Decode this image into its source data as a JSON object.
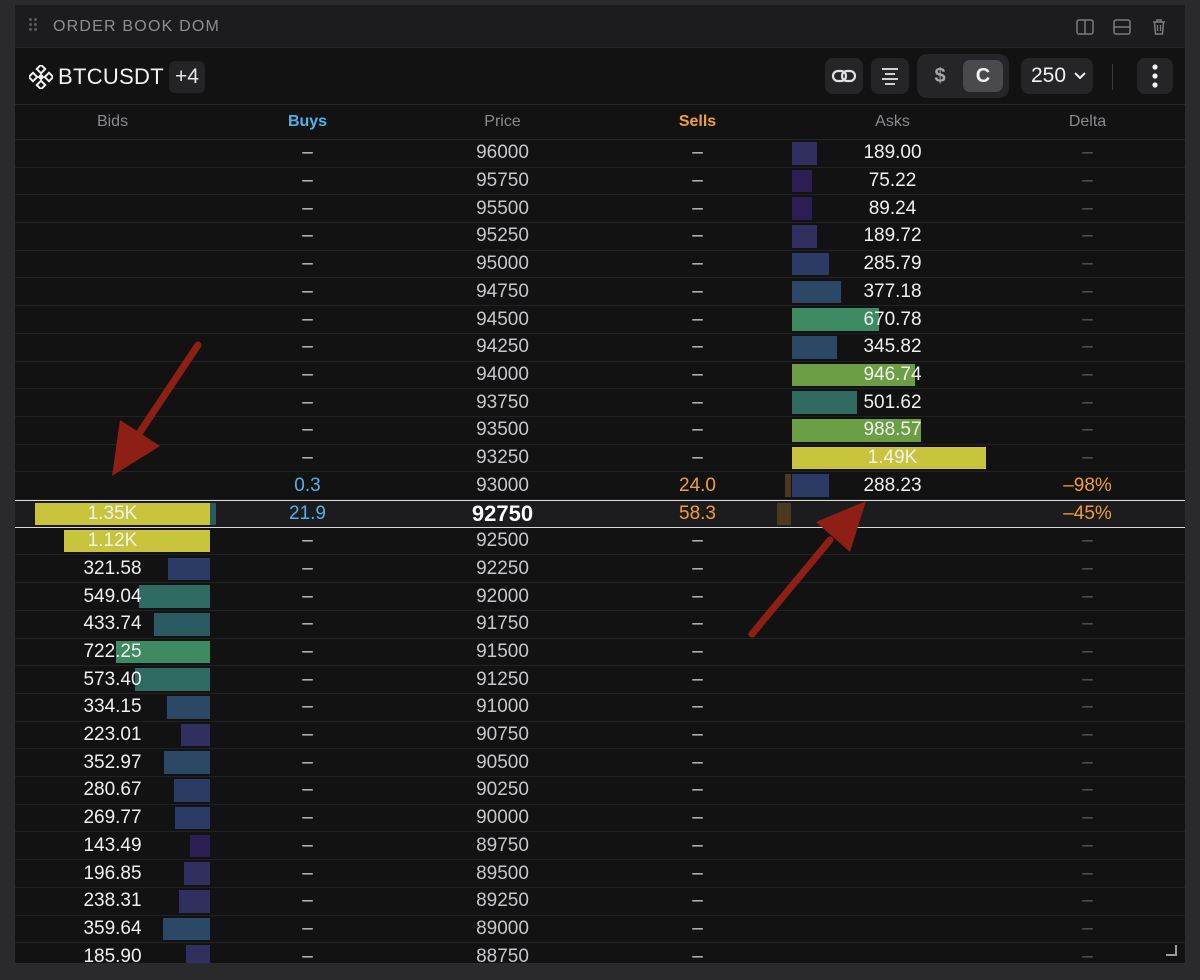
{
  "panel": {
    "title": "ORDER BOOK DOM",
    "icons": [
      "drag-handle-icon",
      "split-vertical-icon",
      "split-horizontal-icon",
      "trash-icon"
    ]
  },
  "toolbar": {
    "symbol": "BTCUSDT",
    "more_symbols": "+4",
    "currency_dollar": "$",
    "currency_c": "C",
    "size": "250",
    "icons": [
      "binance-logo-icon",
      "link-icon",
      "align-icon",
      "chevron-down-icon",
      "more-vertical-icon"
    ]
  },
  "columns": {
    "bids": "Bids",
    "buys": "Buys",
    "price": "Price",
    "sells": "Sells",
    "asks": "Asks",
    "delta": "Delta"
  },
  "colors": {
    "buys": "#4fb3e6",
    "sells": "#f0a030",
    "background": "#121212"
  },
  "rows": [
    {
      "price": "96000",
      "buys": "–",
      "sells": "–",
      "ask": "189.00",
      "ask_value": 189.0,
      "delta": "–"
    },
    {
      "price": "95750",
      "buys": "–",
      "sells": "–",
      "ask": "75.22",
      "ask_value": 75.22,
      "delta": "–"
    },
    {
      "price": "95500",
      "buys": "–",
      "sells": "–",
      "ask": "89.24",
      "ask_value": 89.24,
      "delta": "–"
    },
    {
      "price": "95250",
      "buys": "–",
      "sells": "–",
      "ask": "189.72",
      "ask_value": 189.72,
      "delta": "–"
    },
    {
      "price": "95000",
      "buys": "–",
      "sells": "–",
      "ask": "285.79",
      "ask_value": 285.79,
      "delta": "–"
    },
    {
      "price": "94750",
      "buys": "–",
      "sells": "–",
      "ask": "377.18",
      "ask_value": 377.18,
      "delta": "–"
    },
    {
      "price": "94500",
      "buys": "–",
      "sells": "–",
      "ask": "670.78",
      "ask_value": 670.78,
      "delta": "–"
    },
    {
      "price": "94250",
      "buys": "–",
      "sells": "–",
      "ask": "345.82",
      "ask_value": 345.82,
      "delta": "–"
    },
    {
      "price": "94000",
      "buys": "–",
      "sells": "–",
      "ask": "946.74",
      "ask_value": 946.74,
      "delta": "–"
    },
    {
      "price": "93750",
      "buys": "–",
      "sells": "–",
      "ask": "501.62",
      "ask_value": 501.62,
      "delta": "–"
    },
    {
      "price": "93500",
      "buys": "–",
      "sells": "–",
      "ask": "988.57",
      "ask_value": 988.57,
      "delta": "–"
    },
    {
      "price": "93250",
      "buys": "–",
      "sells": "–",
      "ask": "1.49K",
      "ask_value": 1490,
      "delta": "–"
    },
    {
      "price": "93000",
      "buys": "0.3",
      "sells": "24.0",
      "ask": "288.23",
      "ask_value": 288.23,
      "delta": "–98%"
    },
    {
      "price": "92750",
      "buys": "21.9",
      "sells": "58.3",
      "bid": "1.35K",
      "bid_value": 1350,
      "delta": "–45%",
      "current": true
    },
    {
      "price": "92500",
      "buys": "–",
      "sells": "–",
      "bid": "1.12K",
      "bid_value": 1120,
      "delta": "–"
    },
    {
      "price": "92250",
      "buys": "–",
      "sells": "–",
      "bid": "321.58",
      "bid_value": 321.58,
      "delta": "–"
    },
    {
      "price": "92000",
      "buys": "–",
      "sells": "–",
      "bid": "549.04",
      "bid_value": 549.04,
      "delta": "–"
    },
    {
      "price": "91750",
      "buys": "–",
      "sells": "–",
      "bid": "433.74",
      "bid_value": 433.74,
      "delta": "–"
    },
    {
      "price": "91500",
      "buys": "–",
      "sells": "–",
      "bid": "722.25",
      "bid_value": 722.25,
      "delta": "–"
    },
    {
      "price": "91250",
      "buys": "–",
      "sells": "–",
      "bid": "573.40",
      "bid_value": 573.4,
      "delta": "–"
    },
    {
      "price": "91000",
      "buys": "–",
      "sells": "–",
      "bid": "334.15",
      "bid_value": 334.15,
      "delta": "–"
    },
    {
      "price": "90750",
      "buys": "–",
      "sells": "–",
      "bid": "223.01",
      "bid_value": 223.01,
      "delta": "–"
    },
    {
      "price": "90500",
      "buys": "–",
      "sells": "–",
      "bid": "352.97",
      "bid_value": 352.97,
      "delta": "–"
    },
    {
      "price": "90250",
      "buys": "–",
      "sells": "–",
      "bid": "280.67",
      "bid_value": 280.67,
      "delta": "–"
    },
    {
      "price": "90000",
      "buys": "–",
      "sells": "–",
      "bid": "269.77",
      "bid_value": 269.77,
      "delta": "–"
    },
    {
      "price": "89750",
      "buys": "–",
      "sells": "–",
      "bid": "143.49",
      "bid_value": 143.49,
      "delta": "–"
    },
    {
      "price": "89500",
      "buys": "–",
      "sells": "–",
      "bid": "196.85",
      "bid_value": 196.85,
      "delta": "–"
    },
    {
      "price": "89250",
      "buys": "–",
      "sells": "–",
      "bid": "238.31",
      "bid_value": 238.31,
      "delta": "–"
    },
    {
      "price": "89000",
      "buys": "–",
      "sells": "–",
      "bid": "359.64",
      "bid_value": 359.64,
      "delta": "–"
    },
    {
      "price": "88750",
      "buys": "–",
      "sells": "–",
      "bid": "185.90",
      "bid_value": 185.9,
      "delta": "–"
    }
  ]
}
